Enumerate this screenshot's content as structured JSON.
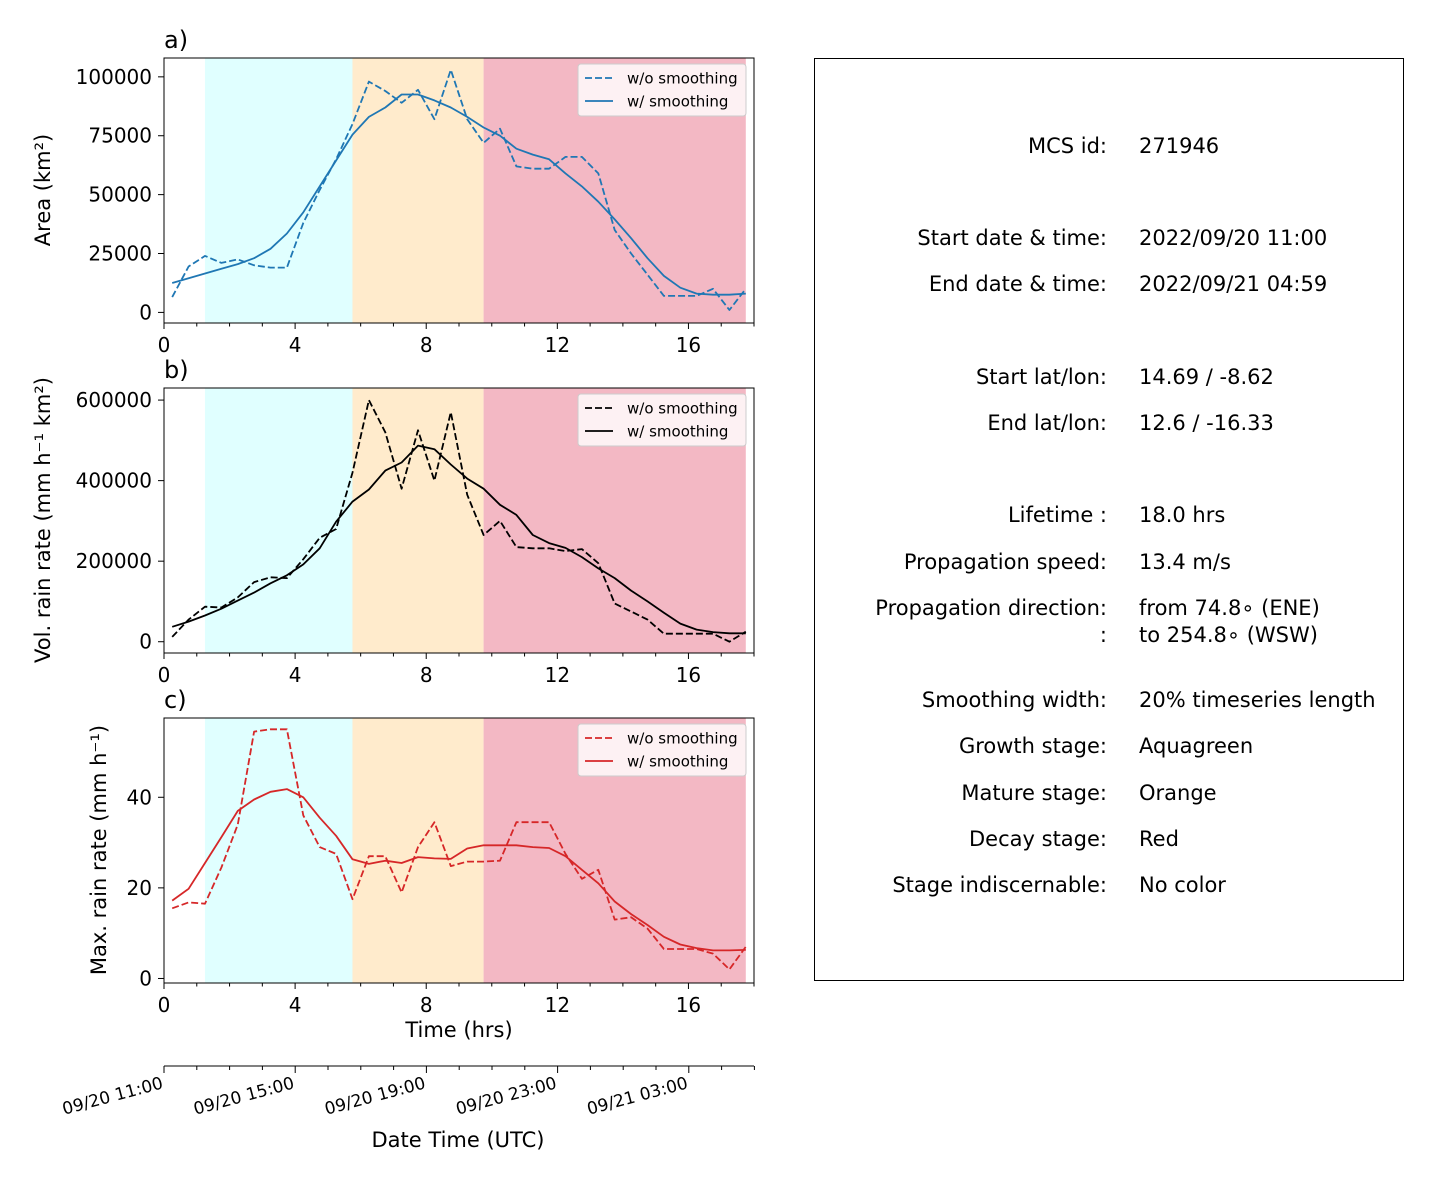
{
  "panels": [
    {
      "id": "a",
      "label": "a)",
      "ylabel": "Area  (km²)",
      "yticks": [
        "0",
        "25000",
        "50000",
        "75000",
        "100000"
      ],
      "series_color": "#1f77b4"
    },
    {
      "id": "b",
      "label": "b)",
      "ylabel": "Vol. rain rate (mm h⁻¹ km²)",
      "yticks": [
        "0",
        "200000",
        "400000",
        "600000"
      ],
      "series_color": "#000000"
    },
    {
      "id": "c",
      "label": "c)",
      "ylabel": "Max. rain rate  (mm h⁻¹)",
      "yticks": [
        "0",
        "20",
        "40"
      ],
      "series_color": "#d62728"
    }
  ],
  "legend": {
    "raw": "w/o smoothing",
    "smooth": "w/ smoothing"
  },
  "xticks": [
    "0",
    "4",
    "8",
    "12",
    "16"
  ],
  "xlabel": "Time (hrs)",
  "datetime_axis": {
    "ticks": [
      "09/20 11:00",
      "09/20 15:00",
      "09/20 19:00",
      "09/20 23:00",
      "09/21 03:00"
    ],
    "label": "Date Time (UTC)"
  },
  "stage_colors": {
    "growth": "#e0ffff",
    "mature": "#ffebcc",
    "decay": "#f3b8c4"
  },
  "info": {
    "rows": [
      {
        "key": "MCS id:",
        "val": "271946"
      },
      {
        "key": "Start date & time:",
        "val": "2022/09/20 11:00"
      },
      {
        "key": "End date & time:",
        "val": "2022/09/21 04:59"
      },
      {
        "key": "Start lat/lon:",
        "val": "14.69 / -8.62"
      },
      {
        "key": "End lat/lon:",
        "val": "12.6 / -16.33"
      },
      {
        "key": "Lifetime :",
        "val": "18.0 hrs"
      },
      {
        "key": "Propagation speed:",
        "val": "13.4 m/s"
      },
      {
        "key": "Propagation direction:",
        "val": "from  74.8∘ (ENE)"
      },
      {
        "key": ":",
        "val": "to   254.8∘ (WSW)"
      },
      {
        "key": "Smoothing width:",
        "val": "20% timeseries length"
      },
      {
        "key": "Growth stage:",
        "val": "Aquagreen"
      },
      {
        "key": "Mature stage:",
        "val": "Orange"
      },
      {
        "key": "Decay stage:",
        "val": "Red"
      },
      {
        "key": "Stage indiscernable:",
        "val": "No color"
      }
    ]
  },
  "chart_data": [
    {
      "type": "line",
      "panel": "a",
      "xlabel": "",
      "ylabel": "Area  (km²)",
      "xlim": [
        0,
        18
      ],
      "ylim": [
        -4500,
        108000
      ],
      "stages": [
        {
          "stage": "growth",
          "x": [
            1.25,
            5.75
          ]
        },
        {
          "stage": "mature",
          "x": [
            5.75,
            9.75
          ]
        },
        {
          "stage": "decay",
          "x": [
            9.75,
            17.75
          ]
        }
      ],
      "x": [
        0.25,
        0.75,
        1.25,
        1.75,
        2.25,
        2.75,
        3.25,
        3.75,
        4.25,
        4.75,
        5.25,
        5.75,
        6.25,
        6.75,
        7.25,
        7.75,
        8.25,
        8.75,
        9.25,
        9.75,
        10.25,
        10.75,
        11.25,
        11.75,
        12.25,
        12.75,
        13.25,
        13.75,
        14.25,
        14.75,
        15.25,
        15.75,
        16.25,
        16.75,
        17.25,
        17.75
      ],
      "series": [
        {
          "name": "w/o smoothing",
          "style": "dashed",
          "values": [
            6500,
            19500,
            24000,
            21000,
            22500,
            20000,
            19000,
            19000,
            38000,
            52000,
            65000,
            80000,
            98000,
            94000,
            89000,
            94500,
            82000,
            103000,
            82000,
            72000,
            78000,
            62000,
            61000,
            61000,
            66000,
            66000,
            59000,
            35000,
            25000,
            16000,
            7000,
            7000,
            7000,
            10000,
            1000,
            10000
          ]
        },
        {
          "name": "w/ smoothing",
          "style": "solid",
          "values": [
            12500,
            14500,
            16500,
            18500,
            20500,
            23000,
            27000,
            33500,
            42500,
            53500,
            64500,
            75500,
            83000,
            87000,
            92500,
            92500,
            90000,
            87000,
            83000,
            78500,
            75000,
            69500,
            67000,
            65000,
            59000,
            53500,
            47000,
            39500,
            31500,
            23000,
            15500,
            10500,
            8000,
            7500,
            7500,
            8000
          ]
        }
      ]
    },
    {
      "type": "line",
      "panel": "b",
      "xlabel": "",
      "ylabel": "Vol. rain rate (mm h⁻¹ km²)",
      "xlim": [
        0,
        18
      ],
      "ylim": [
        -28000,
        630000
      ],
      "stages": [
        {
          "stage": "growth",
          "x": [
            1.25,
            5.75
          ]
        },
        {
          "stage": "mature",
          "x": [
            5.75,
            9.75
          ]
        },
        {
          "stage": "decay",
          "x": [
            9.75,
            17.75
          ]
        }
      ],
      "x": [
        0.25,
        0.75,
        1.25,
        1.75,
        2.25,
        2.75,
        3.25,
        3.75,
        4.25,
        4.75,
        5.25,
        5.75,
        6.25,
        6.75,
        7.25,
        7.75,
        8.25,
        8.75,
        9.25,
        9.75,
        10.25,
        10.75,
        11.25,
        11.75,
        12.25,
        12.75,
        13.25,
        13.75,
        14.25,
        14.75,
        15.25,
        15.75,
        16.25,
        16.75,
        17.25,
        17.75
      ],
      "series": [
        {
          "name": "w/o smoothing",
          "style": "dashed",
          "values": [
            12000,
            55000,
            87000,
            85000,
            110000,
            148000,
            160000,
            158000,
            205000,
            258000,
            280000,
            420000,
            600000,
            520000,
            380000,
            525000,
            400000,
            570000,
            365000,
            265000,
            300000,
            235000,
            232000,
            232000,
            225000,
            230000,
            195000,
            95000,
            75000,
            55000,
            20000,
            20000,
            20000,
            20000,
            0,
            25000
          ]
        },
        {
          "name": "w/ smoothing",
          "style": "solid",
          "values": [
            37000,
            50000,
            65000,
            82000,
            102000,
            122000,
            145000,
            165000,
            192000,
            232000,
            298000,
            348000,
            378000,
            425000,
            445000,
            487000,
            478000,
            440000,
            405000,
            380000,
            340000,
            315000,
            265000,
            245000,
            233000,
            210000,
            182000,
            158000,
            127000,
            100000,
            72000,
            45000,
            30000,
            24000,
            21000,
            21000
          ]
        }
      ]
    },
    {
      "type": "line",
      "panel": "c",
      "xlabel": "Time (hrs)",
      "ylabel": "Max. rain rate  (mm h⁻¹)",
      "xlim": [
        0,
        18
      ],
      "ylim": [
        -1,
        57.5
      ],
      "stages": [
        {
          "stage": "growth",
          "x": [
            1.25,
            5.75
          ]
        },
        {
          "stage": "mature",
          "x": [
            5.75,
            9.75
          ]
        },
        {
          "stage": "decay",
          "x": [
            9.75,
            17.75
          ]
        }
      ],
      "x": [
        0.25,
        0.75,
        1.25,
        1.75,
        2.25,
        2.75,
        3.25,
        3.75,
        4.25,
        4.75,
        5.25,
        5.75,
        6.25,
        6.75,
        7.25,
        7.75,
        8.25,
        8.75,
        9.25,
        9.75,
        10.25,
        10.75,
        11.25,
        11.75,
        12.25,
        12.75,
        13.25,
        13.75,
        14.25,
        14.75,
        15.25,
        15.75,
        16.25,
        16.75,
        17.25,
        17.75
      ],
      "series": [
        {
          "name": "w/o smoothing",
          "style": "dashed",
          "values": [
            15.5,
            16.8,
            16.5,
            24.5,
            34,
            54.5,
            55,
            55,
            36,
            29,
            27.5,
            17.5,
            27,
            27,
            19,
            29,
            34.5,
            24.8,
            25.8,
            25.8,
            26,
            34.5,
            34.5,
            34.5,
            27.5,
            22,
            24,
            13,
            13.5,
            11,
            6.5,
            6.5,
            6.5,
            5.5,
            2,
            7
          ]
        },
        {
          "name": "w/ smoothing",
          "style": "solid",
          "values": [
            17.2,
            19.8,
            25.5,
            31.2,
            37,
            39.5,
            41.2,
            41.8,
            40,
            35.5,
            31.5,
            26.3,
            25.3,
            26,
            25.5,
            26.8,
            26.5,
            26.4,
            28.7,
            29.4,
            29.4,
            29.4,
            29,
            28.8,
            27,
            24,
            21,
            17,
            14.2,
            11.8,
            9.2,
            7.5,
            6.7,
            6.2,
            6.2,
            6.3
          ]
        }
      ]
    }
  ]
}
